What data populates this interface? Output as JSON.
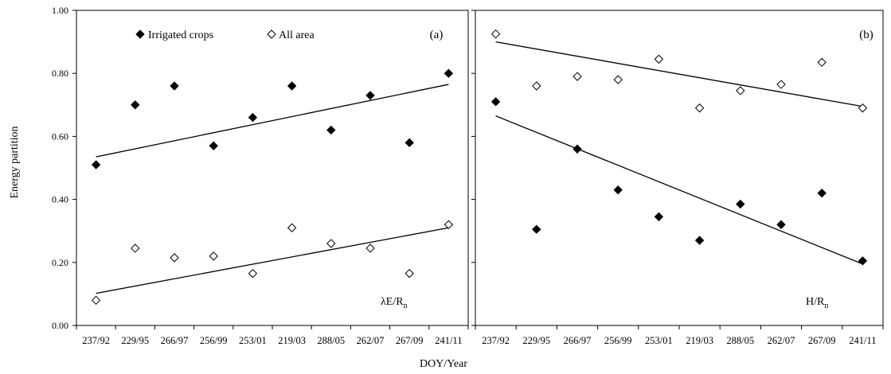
{
  "chart_data": [
    {
      "type": "scatter",
      "panel_label": "(a)",
      "annotation": "λE/R",
      "annotation_sub": "n",
      "categories": [
        "237/92",
        "229/95",
        "266/97",
        "256/99",
        "253/01",
        "219/03",
        "288/05",
        "262/07",
        "267/09",
        "241/11"
      ],
      "ylim": [
        0,
        1
      ],
      "yticks": [
        "0.00",
        "0.20",
        "0.40",
        "0.60",
        "0.80",
        "1.00"
      ],
      "ylabel": "Energy partition",
      "series": [
        {
          "name": "Irrigated crops",
          "marker": "filled-diamond",
          "values": [
            0.51,
            0.7,
            0.76,
            0.57,
            0.66,
            0.76,
            0.62,
            0.73,
            0.58,
            0.8
          ],
          "trend": [
            0.535,
            0.765
          ]
        },
        {
          "name": "All area",
          "marker": "open-diamond",
          "values": [
            0.08,
            0.245,
            0.215,
            0.22,
            0.165,
            0.31,
            0.26,
            0.245,
            0.165,
            0.32
          ],
          "trend": [
            0.102,
            0.31
          ]
        }
      ]
    },
    {
      "type": "scatter",
      "panel_label": "(b)",
      "annotation": "H/R",
      "annotation_sub": "n",
      "categories": [
        "237/92",
        "229/95",
        "266/97",
        "256/99",
        "253/01",
        "219/03",
        "288/05",
        "262/07",
        "267/09",
        "241/11"
      ],
      "ylim": [
        0,
        1
      ],
      "series": [
        {
          "name": "Irrigated crops",
          "marker": "filled-diamond",
          "values": [
            0.71,
            0.305,
            0.56,
            0.43,
            0.345,
            0.27,
            0.385,
            0.32,
            0.42,
            0.205
          ],
          "trend": [
            0.665,
            0.195
          ]
        },
        {
          "name": "All area",
          "marker": "open-diamond",
          "values": [
            0.925,
            0.76,
            0.79,
            0.78,
            0.845,
            0.69,
            0.745,
            0.765,
            0.835,
            0.69
          ],
          "trend": [
            0.9,
            0.695
          ]
        }
      ]
    }
  ],
  "xlabel": "DOY/Year"
}
